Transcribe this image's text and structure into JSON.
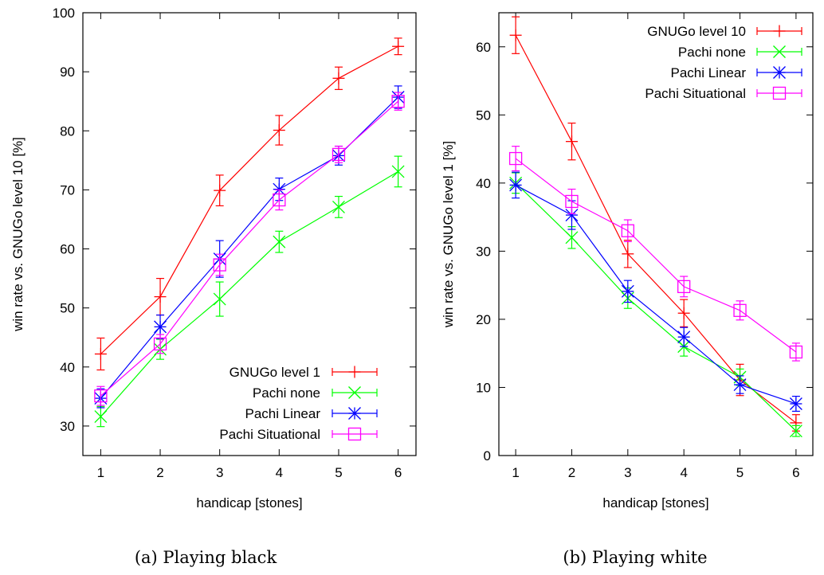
{
  "chart_data": [
    {
      "type": "line",
      "caption": "(a) Playing black",
      "xlabel": "handicap [stones]",
      "ylabel": "win rate vs. GNUGo level 10 [%]",
      "x": [
        1,
        2,
        3,
        4,
        5,
        6
      ],
      "xlim": [
        0.7,
        6.3
      ],
      "ylim": [
        25,
        100
      ],
      "yticks": [
        30,
        40,
        50,
        60,
        70,
        80,
        90,
        100
      ],
      "legend_position": "bottom-right",
      "series": [
        {
          "name": "GNUGo level 1",
          "color": "#ff0000",
          "marker": "plus",
          "values": [
            42.2,
            51.9,
            69.9,
            80.1,
            88.9,
            94.3
          ],
          "errors": [
            2.7,
            3.1,
            2.6,
            2.5,
            1.9,
            1.4
          ]
        },
        {
          "name": "Pachi none",
          "color": "#00ff00",
          "marker": "cross",
          "values": [
            31.6,
            43.0,
            51.5,
            61.2,
            67.1,
            73.1
          ],
          "errors": [
            1.7,
            1.7,
            2.9,
            1.8,
            1.8,
            2.6
          ]
        },
        {
          "name": "Pachi Linear",
          "color": "#0000ff",
          "marker": "star",
          "values": [
            34.7,
            46.8,
            58.3,
            70.1,
            75.8,
            85.7
          ],
          "errors": [
            1.6,
            2.0,
            3.1,
            1.9,
            1.6,
            1.9
          ]
        },
        {
          "name": "Pachi Situational",
          "color": "#ff00ff",
          "marker": "square",
          "values": [
            35.1,
            43.9,
            57.3,
            68.3,
            76.0,
            85.0
          ],
          "errors": [
            1.6,
            1.6,
            1.8,
            1.7,
            1.4,
            1.5
          ]
        }
      ]
    },
    {
      "type": "line",
      "caption": "(b) Playing white",
      "xlabel": "handicap [stones]",
      "ylabel": "win rate vs. GNUGo level 1 [%]",
      "x": [
        1,
        2,
        3,
        4,
        5,
        6
      ],
      "xlim": [
        0.7,
        6.3
      ],
      "ylim": [
        0,
        65
      ],
      "yticks": [
        0,
        10,
        20,
        30,
        40,
        50,
        60
      ],
      "legend_position": "top-right",
      "series": [
        {
          "name": "GNUGo level 10",
          "color": "#ff0000",
          "marker": "plus",
          "values": [
            61.7,
            46.1,
            29.6,
            20.9,
            11.1,
            4.8
          ],
          "errors": [
            2.7,
            2.7,
            2.0,
            2.0,
            2.3,
            1.2
          ]
        },
        {
          "name": "Pachi none",
          "color": "#00ff00",
          "marker": "cross",
          "values": [
            40.0,
            32.0,
            23.1,
            16.0,
            11.5,
            3.6
          ],
          "errors": [
            1.5,
            1.6,
            1.5,
            1.4,
            1.2,
            0.8
          ]
        },
        {
          "name": "Pachi Linear",
          "color": "#0000ff",
          "marker": "star",
          "values": [
            39.7,
            35.3,
            24.1,
            17.4,
            10.4,
            7.6
          ],
          "errors": [
            1.9,
            2.1,
            1.6,
            1.4,
            1.3,
            1.1
          ]
        },
        {
          "name": "Pachi Situational",
          "color": "#ff00ff",
          "marker": "square",
          "values": [
            43.6,
            37.3,
            33.0,
            24.8,
            21.3,
            15.2
          ],
          "errors": [
            1.8,
            1.8,
            1.6,
            1.5,
            1.4,
            1.3
          ]
        }
      ]
    }
  ]
}
